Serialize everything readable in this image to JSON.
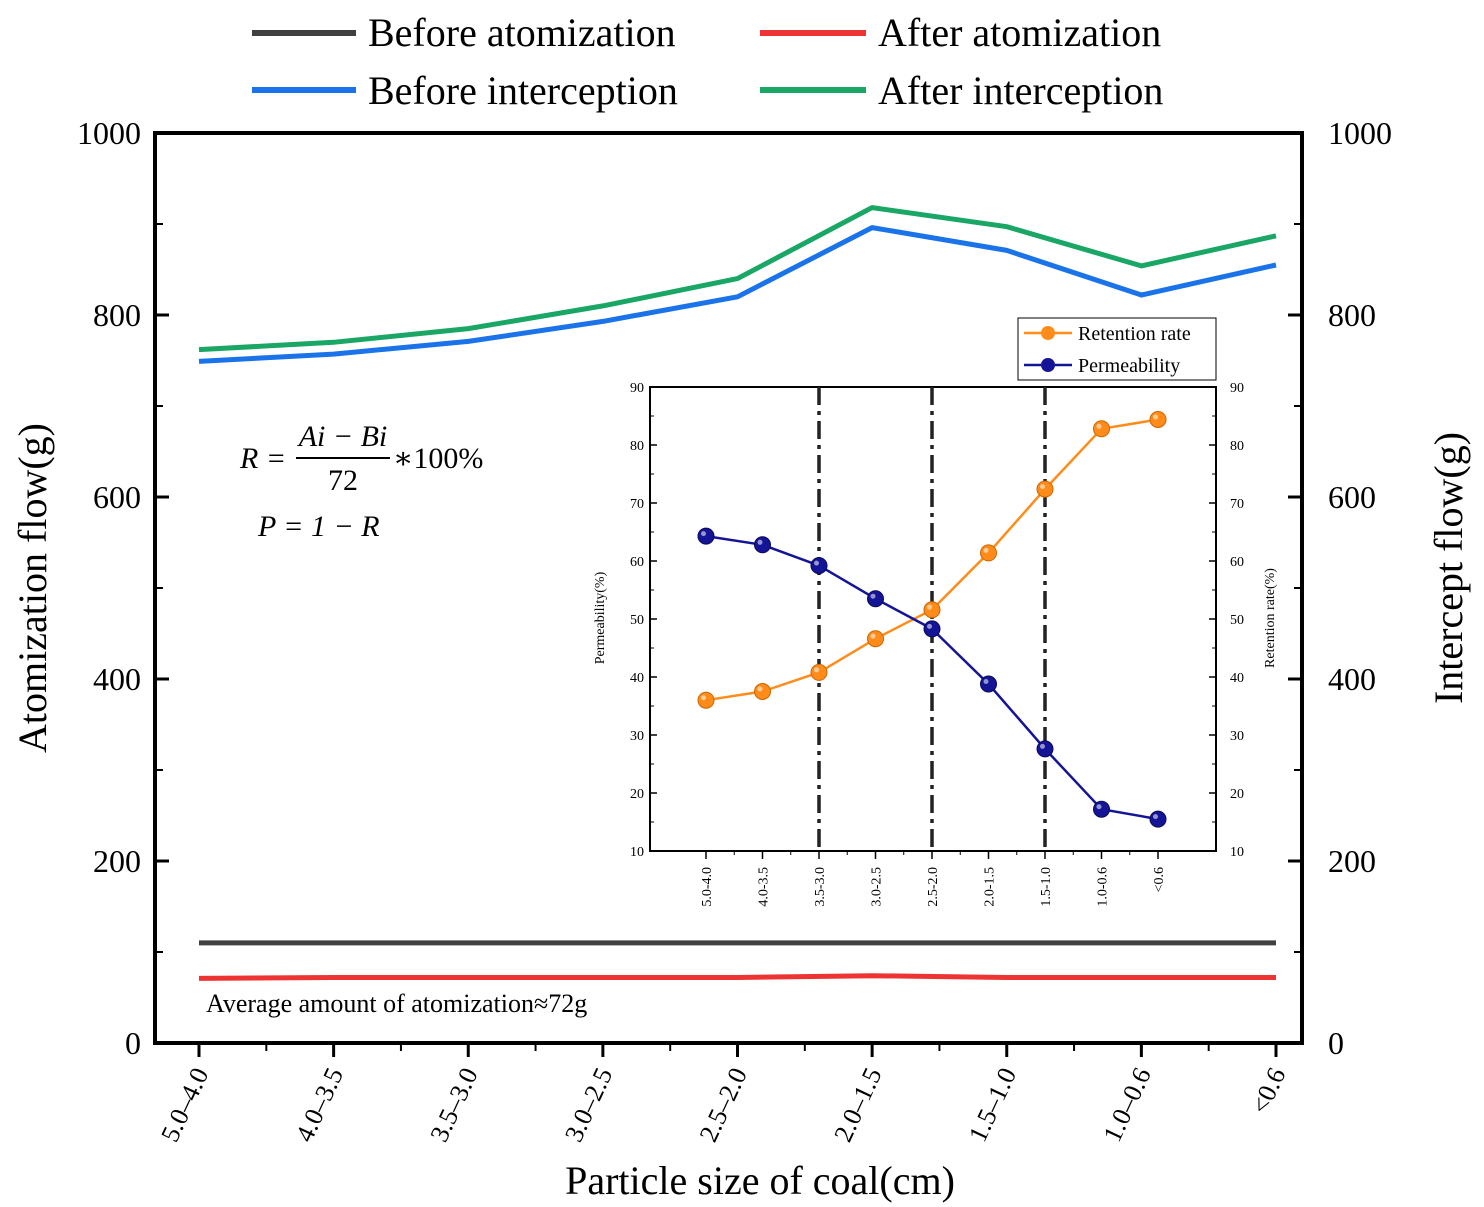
{
  "chart_data": [
    {
      "type": "line",
      "categories": [
        "5.0–4.0",
        "4.0–3.5",
        "3.5–3.0",
        "3.0–2.5",
        "2.5–2.0",
        "2.0–1.5",
        "1.5–1.0",
        "1.0–0.6",
        "<0.6"
      ],
      "xlabel": "Particle size of coal(cm)",
      "ylabel": "Atomization flow(g)",
      "y2label": "Intercept flow(g)",
      "ylim": [
        0,
        1000
      ],
      "y2lim": [
        0,
        1000
      ],
      "yticks": [
        0,
        200,
        400,
        600,
        800,
        1000
      ],
      "grid": false,
      "legend_position": "top",
      "series": [
        {
          "name": "Before atomization",
          "color": "#404040",
          "values": [
            110,
            110,
            110,
            110,
            110,
            110,
            110,
            110,
            110
          ]
        },
        {
          "name": "After atomization",
          "color": "#ee3333",
          "values": [
            71,
            72,
            72,
            72,
            72,
            74,
            72,
            72,
            72
          ]
        },
        {
          "name": "Before interception",
          "color": "#1a73e8",
          "values": [
            749,
            757,
            771,
            793,
            820,
            896,
            871,
            822,
            855
          ]
        },
        {
          "name": "After interception",
          "color": "#1aa766",
          "values": [
            762,
            770,
            785,
            810,
            840,
            918,
            897,
            854,
            887
          ]
        }
      ],
      "annotations": {
        "formula_R_lhs": "R =",
        "formula_R_numerator": "Ai − Bi",
        "formula_R_denominator": "72",
        "formula_R_suffix": "∗100%",
        "formula_P": "P = 1 − R",
        "average_note": "Average amount of atomization≈72g"
      }
    },
    {
      "type": "line",
      "role": "inset",
      "categories": [
        "5.0-4.0",
        "4.0-3.5",
        "3.5-3.0",
        "3.0-2.5",
        "2.5-2.0",
        "2.0-1.5",
        "1.5-1.0",
        "1.0-0.6",
        "<0.6"
      ],
      "ylabel": "Permeability(%)",
      "y2label": "Retention rate(%)",
      "ylim": [
        10,
        90
      ],
      "y2lim": [
        10,
        90
      ],
      "yticks": [
        10,
        20,
        30,
        40,
        50,
        60,
        70,
        80,
        90
      ],
      "vlines_at_categories": [
        "3.5-3.0",
        "2.5-2.0",
        "1.5-1.0"
      ],
      "legend_position": "top-right",
      "series": [
        {
          "name": "Retention rate",
          "color": "#ff8c1a",
          "values": [
            36,
            37.5,
            40.8,
            46.6,
            51.6,
            61.4,
            72.4,
            82.8,
            84.4
          ]
        },
        {
          "name": "Permeability",
          "color": "#141496",
          "values": [
            64.3,
            62.8,
            59.2,
            53.5,
            48.3,
            38.8,
            27.6,
            17.2,
            15.5
          ]
        }
      ]
    }
  ]
}
